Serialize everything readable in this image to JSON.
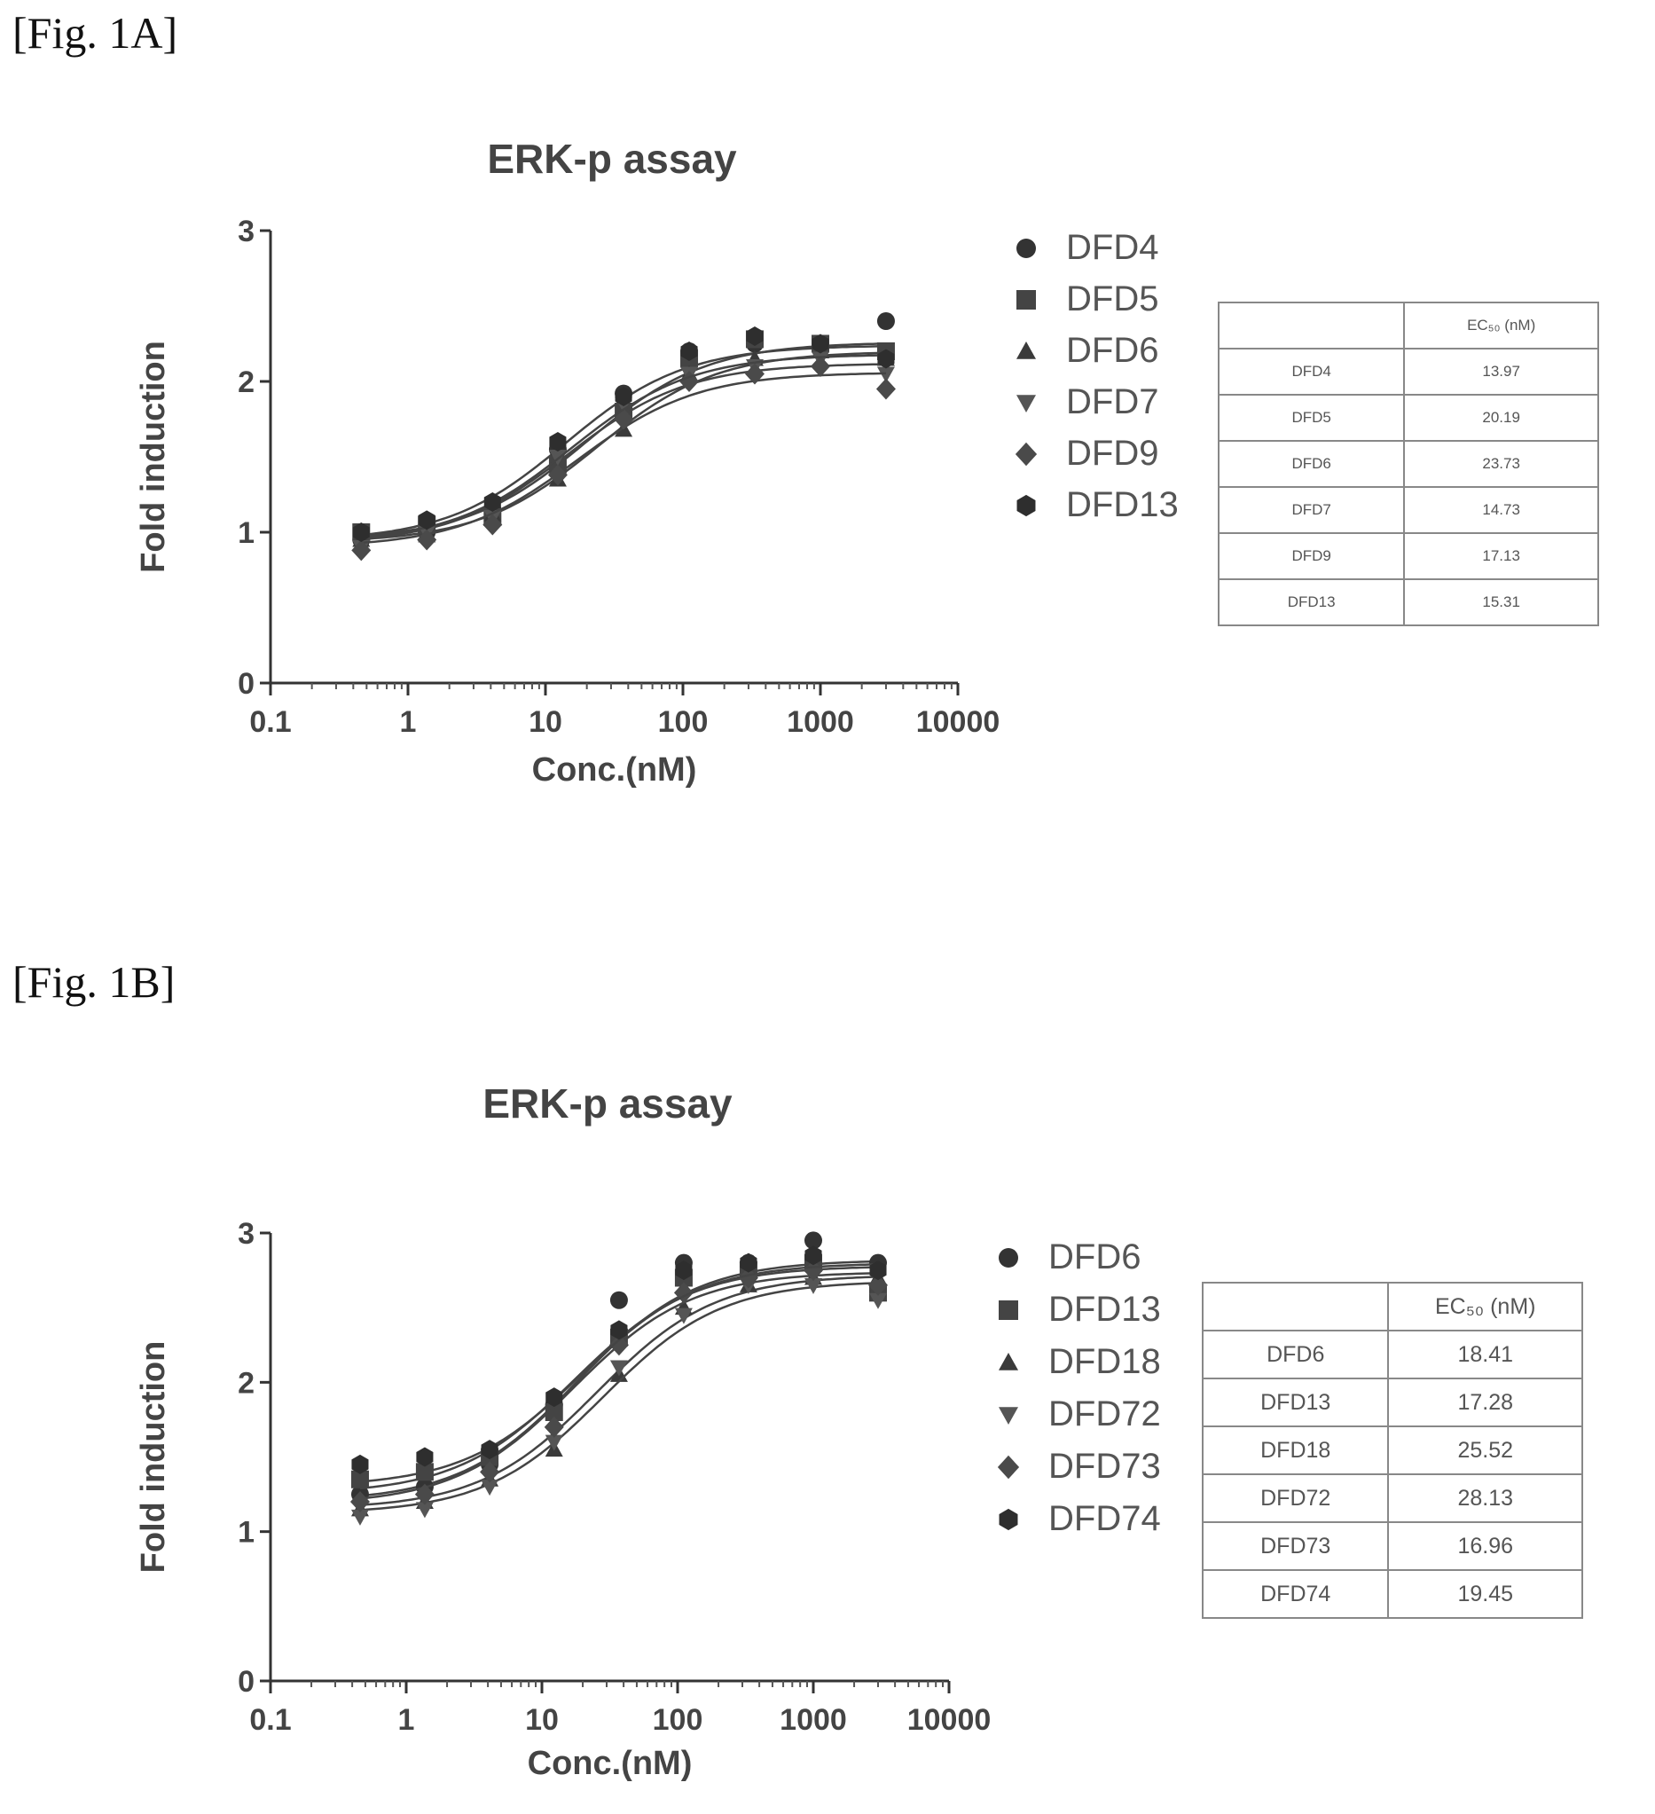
{
  "figures": [
    {
      "label": "[Fig. 1A]",
      "table": {
        "header": [
          "",
          "EC₅₀ (nM)"
        ],
        "rows": [
          [
            "DFD4",
            "13.97"
          ],
          [
            "DFD5",
            "20.19"
          ],
          [
            "DFD6",
            "23.73"
          ],
          [
            "DFD7",
            "14.73"
          ],
          [
            "DFD9",
            "17.13"
          ],
          [
            "DFD13",
            "15.31"
          ]
        ]
      }
    },
    {
      "label": "[Fig. 1B]",
      "table": {
        "header": [
          "",
          "EC₅₀ (nM)"
        ],
        "rows": [
          [
            "DFD6",
            "18.41"
          ],
          [
            "DFD13",
            "17.28"
          ],
          [
            "DFD18",
            "25.52"
          ],
          [
            "DFD72",
            "28.13"
          ],
          [
            "DFD73",
            "16.96"
          ],
          [
            "DFD74",
            "19.45"
          ]
        ]
      }
    }
  ],
  "chart_data": [
    {
      "type": "scatter",
      "title": "ERK-p assay",
      "xlabel": "Conc.(nM)",
      "ylabel": "Fold induction",
      "xscale": "log",
      "xlim": [
        0.1,
        10000
      ],
      "ylim": [
        0,
        3
      ],
      "xticks": [
        "0.1",
        "1",
        "10",
        "100",
        "1000",
        "10000"
      ],
      "yticks": [
        "0",
        "1",
        "2",
        "3"
      ],
      "legend_position": "right",
      "x": [
        0.457,
        1.37,
        4.12,
        12.3,
        37.0,
        111,
        333,
        1000,
        3000
      ],
      "series": [
        {
          "name": "DFD4",
          "marker": "circle",
          "fit": {
            "bottom": 0.94,
            "top": 2.24,
            "ec50": 13.97
          },
          "values": [
            0.95,
            1.0,
            1.15,
            1.55,
            1.92,
            2.2,
            2.25,
            2.25,
            2.4
          ]
        },
        {
          "name": "DFD5",
          "marker": "square",
          "fit": {
            "bottom": 0.95,
            "top": 2.26,
            "ec50": 20.19
          },
          "values": [
            1.0,
            1.05,
            1.1,
            1.45,
            1.8,
            2.15,
            2.28,
            2.25,
            2.2
          ]
        },
        {
          "name": "DFD6",
          "marker": "triangle-up",
          "fit": {
            "bottom": 0.93,
            "top": 2.2,
            "ec50": 23.73
          },
          "values": [
            0.95,
            0.98,
            1.12,
            1.35,
            1.68,
            2.05,
            2.15,
            2.2,
            2.15
          ]
        },
        {
          "name": "DFD7",
          "marker": "triangle-down",
          "fit": {
            "bottom": 0.92,
            "top": 2.12,
            "ec50": 14.73
          },
          "values": [
            0.9,
            1.0,
            1.1,
            1.5,
            1.85,
            2.05,
            2.1,
            2.15,
            2.05
          ]
        },
        {
          "name": "DFD9",
          "marker": "diamond",
          "fit": {
            "bottom": 0.9,
            "top": 2.06,
            "ec50": 17.13
          },
          "values": [
            0.88,
            0.95,
            1.05,
            1.38,
            1.75,
            2.0,
            2.05,
            2.1,
            1.95
          ]
        },
        {
          "name": "DFD13",
          "marker": "hexagon",
          "fit": {
            "bottom": 0.93,
            "top": 2.18,
            "ec50": 15.31
          },
          "values": [
            1.0,
            1.08,
            1.2,
            1.6,
            1.9,
            2.2,
            2.3,
            2.25,
            2.15
          ]
        }
      ]
    },
    {
      "type": "scatter",
      "title": "ERK-p assay",
      "xlabel": "Conc.(nM)",
      "ylabel": "Fold induction",
      "xscale": "log",
      "xlim": [
        0.1,
        10000
      ],
      "ylim": [
        0,
        3
      ],
      "xticks": [
        "0.1",
        "1",
        "10",
        "100",
        "1000",
        "10000"
      ],
      "yticks": [
        "0",
        "1",
        "2",
        "3"
      ],
      "legend_position": "right",
      "x": [
        0.457,
        1.37,
        4.12,
        12.3,
        37.0,
        111,
        333,
        1000,
        3000
      ],
      "series": [
        {
          "name": "DFD6",
          "marker": "circle",
          "fit": {
            "bottom": 1.2,
            "top": 2.82,
            "ec50": 18.41
          },
          "values": [
            1.25,
            1.3,
            1.45,
            1.85,
            2.55,
            2.8,
            2.8,
            2.95,
            2.8
          ]
        },
        {
          "name": "DFD13",
          "marker": "square",
          "fit": {
            "bottom": 1.25,
            "top": 2.78,
            "ec50": 17.28
          },
          "values": [
            1.35,
            1.4,
            1.5,
            1.8,
            2.3,
            2.7,
            2.75,
            2.8,
            2.6
          ]
        },
        {
          "name": "DFD18",
          "marker": "triangle-up",
          "fit": {
            "bottom": 1.15,
            "top": 2.72,
            "ec50": 25.52
          },
          "values": [
            1.15,
            1.2,
            1.35,
            1.55,
            2.05,
            2.5,
            2.65,
            2.7,
            2.7
          ]
        },
        {
          "name": "DFD72",
          "marker": "triangle-down",
          "fit": {
            "bottom": 1.12,
            "top": 2.68,
            "ec50": 28.13
          },
          "values": [
            1.1,
            1.15,
            1.3,
            1.6,
            2.1,
            2.45,
            2.65,
            2.65,
            2.55
          ]
        },
        {
          "name": "DFD73",
          "marker": "diamond",
          "fit": {
            "bottom": 1.18,
            "top": 2.74,
            "ec50": 16.96
          },
          "values": [
            1.2,
            1.25,
            1.4,
            1.7,
            2.25,
            2.6,
            2.7,
            2.75,
            2.65
          ]
        },
        {
          "name": "DFD74",
          "marker": "hexagon",
          "fit": {
            "bottom": 1.3,
            "top": 2.8,
            "ec50": 19.45
          },
          "values": [
            1.45,
            1.5,
            1.55,
            1.9,
            2.35,
            2.75,
            2.8,
            2.85,
            2.75
          ]
        }
      ]
    }
  ]
}
